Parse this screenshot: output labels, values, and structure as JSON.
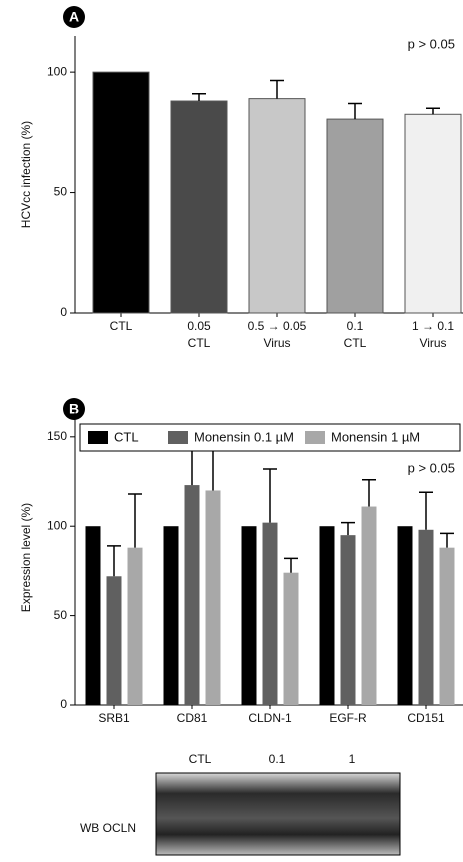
{
  "chart_data": [
    {
      "type": "bar",
      "panel": "A",
      "ylabel": "HCVcc infection (%)",
      "annotation": "p > 0.05",
      "categories": [
        [
          "CTL"
        ],
        [
          "0.05",
          "CTL"
        ],
        [
          "0.5 → 0.05",
          "Virus"
        ],
        [
          "0.1",
          "CTL"
        ],
        [
          "1 → 0.1",
          "Virus"
        ]
      ],
      "values": [
        100,
        88,
        89,
        80.5,
        82.5
      ],
      "errors": [
        null,
        3,
        7.5,
        6.5,
        2.5
      ],
      "colors": [
        "#000000",
        "#4a4a4a",
        "#c8c8c8",
        "#a0a0a0",
        "#f0f0f0"
      ],
      "ylim": [
        0,
        115
      ],
      "yticks": [
        0,
        50,
        100
      ]
    },
    {
      "type": "bar",
      "panel": "B",
      "ylabel": "Expression level (%)",
      "annotation": "p > 0.05",
      "categories": [
        "SRB1",
        "CD81",
        "CLDN-1",
        "EGF-R",
        "CD151"
      ],
      "series": [
        {
          "name": "CTL",
          "color": "#000000",
          "values": [
            100,
            100,
            100,
            100,
            100
          ]
        },
        {
          "name": "Monensin 0.1 µM",
          "color": "#606060",
          "values": [
            72,
            123,
            102,
            95,
            98
          ],
          "errors": [
            17,
            28,
            30,
            7,
            21
          ]
        },
        {
          "name": "Monensin 1 µM",
          "color": "#a8a8a8",
          "values": [
            88,
            120,
            74,
            111,
            88
          ],
          "errors": [
            30,
            25,
            8,
            15,
            8
          ]
        }
      ],
      "ylim": [
        0,
        165
      ],
      "yticks": [
        0,
        50,
        100,
        150
      ],
      "legend": "top"
    }
  ],
  "blot": {
    "lanes": [
      "CTL",
      "0.1",
      "1"
    ],
    "label": "WB OCLN"
  }
}
